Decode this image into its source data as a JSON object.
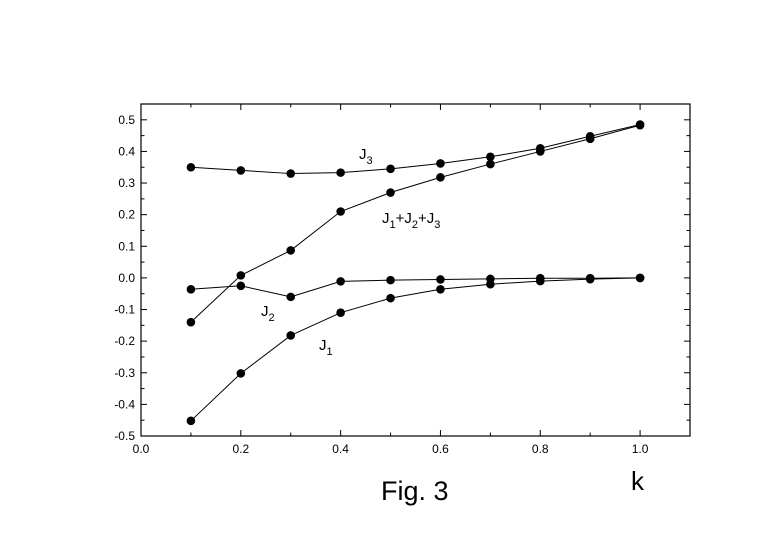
{
  "chart_data": {
    "type": "line",
    "xlabel": "k",
    "ylabel": "",
    "xlim": [
      0.0,
      1.1
    ],
    "ylim": [
      -0.5,
      0.55
    ],
    "x_ticks": [
      "0.0",
      "0.2",
      "0.4",
      "0.6",
      "0.8",
      "1.0"
    ],
    "y_ticks": [
      "-0.5",
      "-0.4",
      "-0.3",
      "-0.2",
      "-0.1",
      "0.0",
      "0.1",
      "0.2",
      "0.3",
      "0.4",
      "0.5"
    ],
    "grid": false,
    "marker": "filled-circle",
    "line_color": "#000000",
    "x": [
      0.1,
      0.2,
      0.3,
      0.4,
      0.5,
      0.6,
      0.7,
      0.8,
      0.9,
      1.0
    ],
    "series": [
      {
        "name": "J3",
        "label_main": "J",
        "label_sub": "3",
        "values": [
          0.35,
          0.34,
          0.33,
          0.333,
          0.345,
          0.362,
          0.383,
          0.41,
          0.448,
          0.485
        ]
      },
      {
        "name": "J1+J2+J3",
        "label_parts": [
          "J",
          "1",
          "+J",
          "2",
          "+J",
          "3"
        ],
        "values": [
          -0.14,
          0.008,
          0.087,
          0.21,
          0.27,
          0.318,
          0.36,
          0.4,
          0.44,
          0.483
        ]
      },
      {
        "name": "J2",
        "label_main": "J",
        "label_sub": "2",
        "values": [
          -0.036,
          -0.025,
          -0.06,
          -0.011,
          -0.007,
          -0.005,
          -0.003,
          -0.001,
          -0.001,
          0.0
        ]
      },
      {
        "name": "J1",
        "label_main": "J",
        "label_sub": "1",
        "values": [
          -0.452,
          -0.302,
          -0.182,
          -0.11,
          -0.064,
          -0.036,
          -0.02,
          -0.01,
          -0.004,
          0.0
        ]
      }
    ],
    "caption": "Fig. 3"
  }
}
